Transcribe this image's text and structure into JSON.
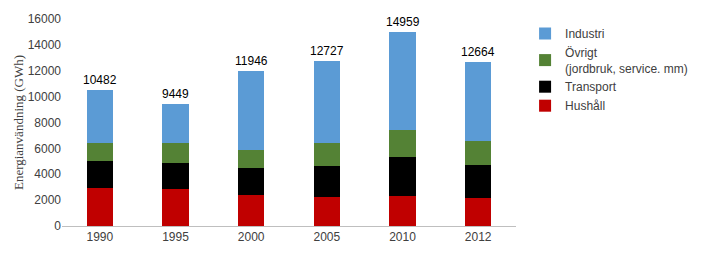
{
  "chart_data": {
    "type": "bar",
    "stacked": true,
    "y_label": "Energianvändning (GWh)",
    "categories": [
      "1990",
      "1995",
      "2000",
      "2005",
      "2010",
      "2012"
    ],
    "series": [
      {
        "name": "Hushåll",
        "color": "#c00000",
        "values": [
          2900,
          2850,
          2400,
          2250,
          2300,
          2150
        ]
      },
      {
        "name": "Transport",
        "color": "#000000",
        "values": [
          2100,
          2050,
          2100,
          2400,
          3000,
          2600
        ]
      },
      {
        "name": "Övrigt (jordbruk, service. mm)",
        "color": "#548235",
        "values": [
          1400,
          1500,
          1400,
          1750,
          2100,
          1800
        ]
      },
      {
        "name": "Industri",
        "color": "#5b9bd5",
        "values": [
          4082,
          3049,
          6046,
          6327,
          7559,
          6114
        ]
      }
    ],
    "totals": [
      10482,
      9449,
      11946,
      12727,
      14959,
      12664
    ],
    "ylim": [
      0,
      16000
    ],
    "yticks": [
      0,
      2000,
      4000,
      6000,
      8000,
      10000,
      12000,
      14000,
      16000
    ],
    "grid": false,
    "legend": "right"
  }
}
